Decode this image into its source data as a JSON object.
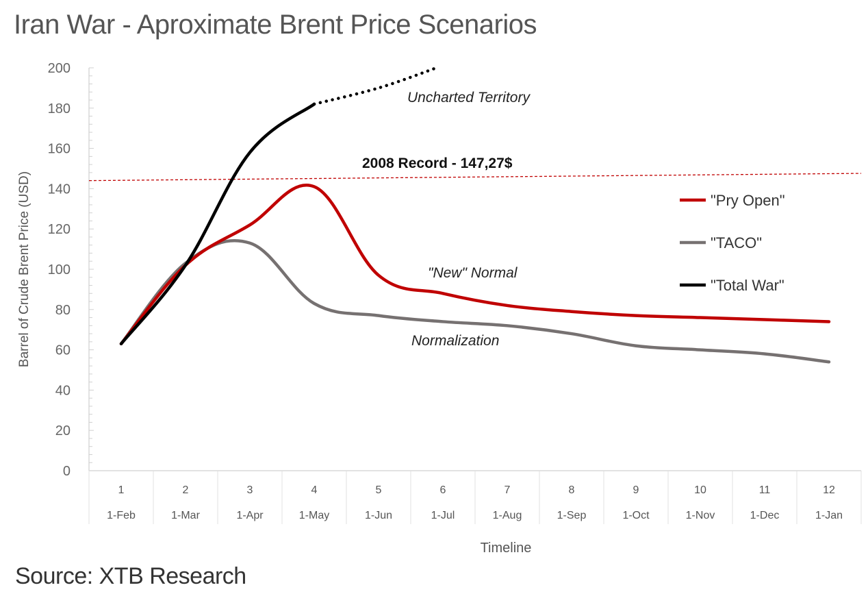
{
  "title": "Iran War - Aproximate Brent Price Scenarios",
  "source": "Source: XTB Research",
  "chart_data": {
    "type": "line",
    "title": "Iran War - Aproximate Brent Price Scenarios",
    "xlabel": "Timeline",
    "ylabel": "Barrel of Crude Brent Price (USD)",
    "ylim": [
      0,
      200
    ],
    "yticks": [
      0,
      20,
      40,
      60,
      80,
      100,
      120,
      140,
      160,
      180,
      200
    ],
    "categories": [
      "1",
      "2",
      "3",
      "4",
      "5",
      "6",
      "7",
      "8",
      "9",
      "10",
      "11",
      "12"
    ],
    "category_dates": [
      "1-Feb",
      "1-Mar",
      "1-Apr",
      "1-May",
      "1-Jun",
      "1-Jul",
      "1-Aug",
      "1-Sep",
      "1-Oct",
      "1-Nov",
      "1-Dec",
      "1-Jan"
    ],
    "grid": false,
    "legend_position": "right",
    "series": [
      {
        "name": "\"Pry Open\"",
        "color": "#c00000",
        "x": [
          1,
          2,
          3,
          4,
          5,
          6,
          7,
          8,
          9,
          10,
          11,
          12
        ],
        "values": [
          63,
          102,
          122,
          141,
          97,
          88,
          82,
          79,
          77,
          76,
          75,
          74
        ]
      },
      {
        "name": "\"TACO\"",
        "color": "#767171",
        "x": [
          1,
          2,
          3,
          4,
          5,
          6,
          7,
          8,
          9,
          10,
          11,
          12
        ],
        "values": [
          63,
          103,
          113,
          83,
          77,
          74,
          72,
          68,
          62,
          60,
          58,
          54
        ]
      },
      {
        "name": "\"Total War\"",
        "color": "#000000",
        "x": [
          1,
          2,
          3,
          4
        ],
        "values": [
          63,
          102,
          158,
          182
        ],
        "extension": {
          "style": "dotted",
          "x": [
            4,
            5,
            5.9
          ],
          "values": [
            182,
            190,
            200
          ]
        }
      }
    ],
    "reference_line": {
      "label": "2008 Record - 147,27$",
      "value": 147.27,
      "color": "#c00000",
      "style": "dashed",
      "value_left": 144,
      "value_right": 147.6
    },
    "annotations": [
      {
        "text": "Uncharted Territory",
        "x": 6.5,
        "y": 186
      },
      {
        "text": "\"New\" Normal",
        "x": 6.4,
        "y": 98
      },
      {
        "text": "Normalization",
        "x": 6.3,
        "y": 64
      }
    ]
  }
}
